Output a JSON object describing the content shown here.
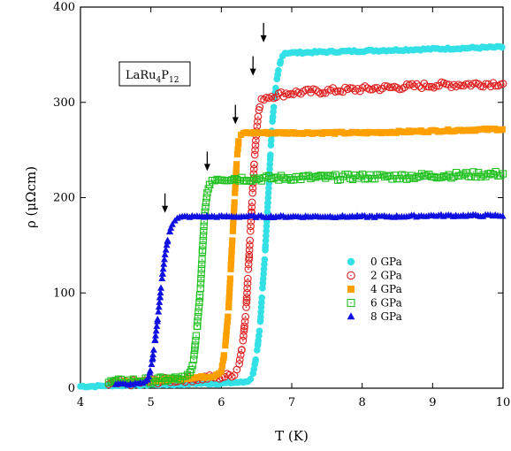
{
  "chart_data": {
    "type": "scatter",
    "xlabel": "T (K)",
    "ylabel": "ρ (μΩcm)",
    "xlim": [
      4,
      10
    ],
    "ylim": [
      0,
      400
    ],
    "xticks": [
      4,
      5,
      6,
      7,
      8,
      9,
      10
    ],
    "yticks": [
      0,
      100,
      200,
      300,
      400
    ],
    "grid": false,
    "legend_position": "center-right",
    "annotation": {
      "text": "LaRu",
      "sub1": "4",
      "mid": "P",
      "sub2": "12"
    },
    "transition_arrows": [
      {
        "x": 6.6,
        "y": 363
      },
      {
        "x": 6.45,
        "y": 328
      },
      {
        "x": 6.2,
        "y": 277
      },
      {
        "x": 5.8,
        "y": 228
      },
      {
        "x": 5.2,
        "y": 184
      }
    ],
    "series": [
      {
        "name": "0 GPa",
        "color": "#33e0e6",
        "marker": "circle-filled",
        "points": [
          [
            4.0,
            2
          ],
          [
            4.2,
            2
          ],
          [
            4.4,
            3
          ],
          [
            4.6,
            3
          ],
          [
            4.8,
            3
          ],
          [
            5.0,
            4
          ],
          [
            5.2,
            4
          ],
          [
            5.4,
            4
          ],
          [
            5.6,
            5
          ],
          [
            5.8,
            5
          ],
          [
            6.0,
            5
          ],
          [
            6.2,
            6
          ],
          [
            6.3,
            6
          ],
          [
            6.4,
            8
          ],
          [
            6.45,
            15
          ],
          [
            6.5,
            35
          ],
          [
            6.55,
            65
          ],
          [
            6.58,
            100
          ],
          [
            6.62,
            140
          ],
          [
            6.65,
            180
          ],
          [
            6.68,
            220
          ],
          [
            6.7,
            250
          ],
          [
            6.72,
            275
          ],
          [
            6.75,
            300
          ],
          [
            6.78,
            320
          ],
          [
            6.82,
            338
          ],
          [
            6.86,
            348
          ],
          [
            6.9,
            352
          ],
          [
            7.0,
            352
          ],
          [
            7.5,
            353
          ],
          [
            8.0,
            354
          ],
          [
            8.5,
            355
          ],
          [
            9.0,
            356
          ],
          [
            9.5,
            357
          ],
          [
            10.0,
            358
          ]
        ]
      },
      {
        "name": "2 GPa",
        "color": "#e02020",
        "marker": "circle-open",
        "points": [
          [
            4.4,
            4
          ],
          [
            4.6,
            5
          ],
          [
            4.8,
            6
          ],
          [
            5.0,
            7
          ],
          [
            5.2,
            8
          ],
          [
            5.4,
            9
          ],
          [
            5.6,
            10
          ],
          [
            5.8,
            11
          ],
          [
            6.0,
            12
          ],
          [
            6.1,
            13
          ],
          [
            6.2,
            16
          ],
          [
            6.25,
            25
          ],
          [
            6.3,
            45
          ],
          [
            6.35,
            80
          ],
          [
            6.38,
            120
          ],
          [
            6.41,
            160
          ],
          [
            6.44,
            200
          ],
          [
            6.47,
            240
          ],
          [
            6.5,
            270
          ],
          [
            6.53,
            290
          ],
          [
            6.56,
            300
          ],
          [
            6.6,
            305
          ],
          [
            6.8,
            308
          ],
          [
            7.0,
            310
          ],
          [
            7.5,
            312
          ],
          [
            8.0,
            314
          ],
          [
            8.5,
            316
          ],
          [
            9.0,
            318
          ],
          [
            9.5,
            319
          ],
          [
            10.0,
            320
          ]
        ]
      },
      {
        "name": "4 GPa",
        "color": "#ffa000",
        "marker": "square-filled",
        "points": [
          [
            4.6,
            6
          ],
          [
            4.8,
            7
          ],
          [
            5.0,
            8
          ],
          [
            5.2,
            9
          ],
          [
            5.4,
            10
          ],
          [
            5.6,
            11
          ],
          [
            5.8,
            12
          ],
          [
            5.9,
            13
          ],
          [
            6.0,
            18
          ],
          [
            6.05,
            40
          ],
          [
            6.1,
            80
          ],
          [
            6.13,
            120
          ],
          [
            6.16,
            160
          ],
          [
            6.19,
            200
          ],
          [
            6.22,
            240
          ],
          [
            6.25,
            262
          ],
          [
            6.3,
            268
          ],
          [
            6.5,
            268
          ],
          [
            7.0,
            268
          ],
          [
            7.5,
            268
          ],
          [
            8.0,
            268
          ],
          [
            8.5,
            269
          ],
          [
            9.0,
            270
          ],
          [
            9.5,
            271
          ],
          [
            10.0,
            272
          ]
        ]
      },
      {
        "name": "6 GPa",
        "color": "#20c020",
        "marker": "square-open",
        "points": [
          [
            4.4,
            6
          ],
          [
            4.6,
            7
          ],
          [
            4.8,
            8
          ],
          [
            5.0,
            8
          ],
          [
            5.2,
            9
          ],
          [
            5.4,
            10
          ],
          [
            5.5,
            11
          ],
          [
            5.55,
            14
          ],
          [
            5.6,
            25
          ],
          [
            5.65,
            60
          ],
          [
            5.7,
            100
          ],
          [
            5.73,
            140
          ],
          [
            5.76,
            180
          ],
          [
            5.8,
            205
          ],
          [
            5.85,
            218
          ],
          [
            5.9,
            220
          ],
          [
            6.0,
            220
          ],
          [
            6.5,
            220
          ],
          [
            7.0,
            221
          ],
          [
            7.5,
            221
          ],
          [
            8.0,
            222
          ],
          [
            8.5,
            222
          ],
          [
            9.0,
            223
          ],
          [
            9.5,
            224
          ],
          [
            10.0,
            225
          ]
        ]
      },
      {
        "name": "8 GPa",
        "color": "#1010e0",
        "marker": "triangle-filled",
        "points": [
          [
            4.5,
            4
          ],
          [
            4.7,
            4
          ],
          [
            4.9,
            5
          ],
          [
            4.95,
            8
          ],
          [
            5.0,
            20
          ],
          [
            5.05,
            45
          ],
          [
            5.1,
            75
          ],
          [
            5.15,
            110
          ],
          [
            5.2,
            140
          ],
          [
            5.25,
            160
          ],
          [
            5.3,
            172
          ],
          [
            5.35,
            177
          ],
          [
            5.4,
            179
          ],
          [
            5.5,
            180
          ],
          [
            6.0,
            180
          ],
          [
            6.5,
            180
          ],
          [
            7.0,
            180
          ],
          [
            7.5,
            180
          ],
          [
            8.0,
            180
          ],
          [
            8.5,
            180
          ],
          [
            9.0,
            181
          ],
          [
            9.5,
            181
          ],
          [
            10.0,
            181
          ]
        ]
      }
    ]
  }
}
